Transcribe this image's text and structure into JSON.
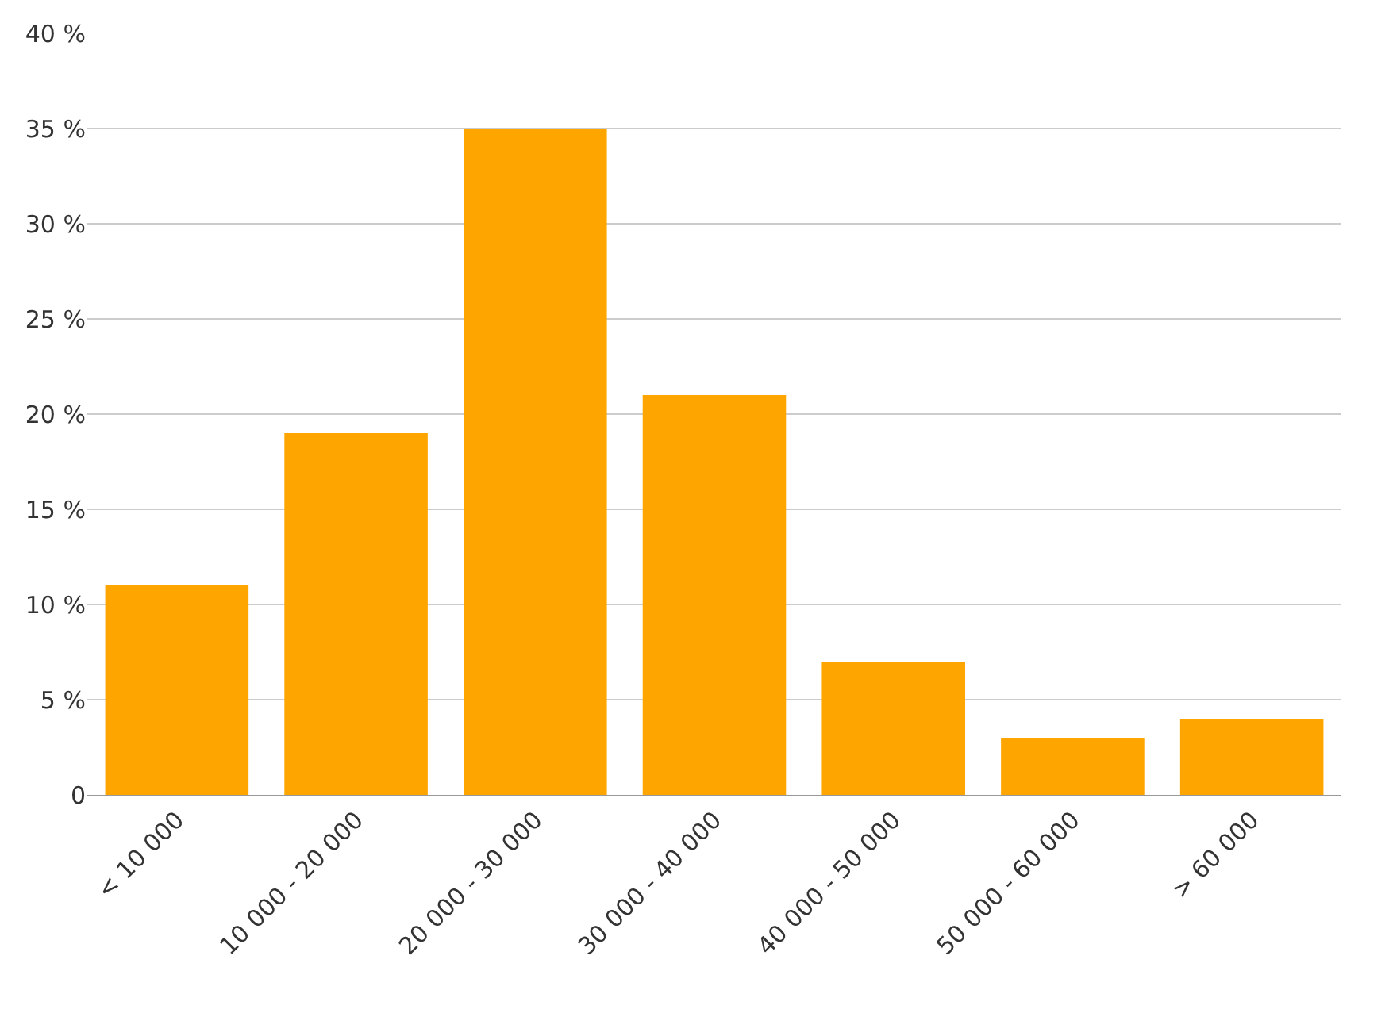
{
  "chart_data": {
    "type": "bar",
    "categories": [
      "< 10 000",
      "10 000 - 20 000",
      "20 000 - 30 000",
      "30 000 - 40 000",
      "40 000 - 50 000",
      "50 000 - 60 000",
      "> 60 000"
    ],
    "values": [
      11,
      19,
      35,
      21,
      7,
      3,
      4
    ],
    "color": "#ffa500",
    "ylim": [
      0,
      40
    ],
    "yticks": [
      {
        "value": 0,
        "label": "0"
      },
      {
        "value": 5,
        "label": "5 %"
      },
      {
        "value": 10,
        "label": "10 %"
      },
      {
        "value": 15,
        "label": "15 %"
      },
      {
        "value": 20,
        "label": "20 %"
      },
      {
        "value": 25,
        "label": "25 %"
      },
      {
        "value": 30,
        "label": "30 %"
      },
      {
        "value": 35,
        "label": "35 %"
      },
      {
        "value": 40,
        "label": "40 %"
      }
    ],
    "grid": "y"
  }
}
